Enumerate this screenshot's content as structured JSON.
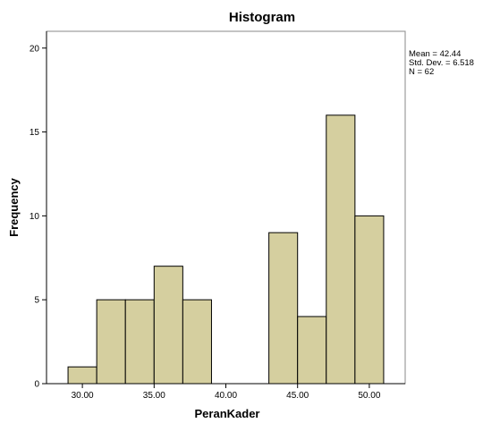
{
  "chart_data": {
    "type": "bar",
    "subtype": "histogram",
    "title": "Histogram",
    "xlabel": "PeranKader",
    "ylabel": "Frequency",
    "xlim": [
      27.5,
      52.5
    ],
    "ylim": [
      0,
      21
    ],
    "bin_width": 2,
    "bins": [
      {
        "start": 29,
        "end": 31,
        "frequency": 1
      },
      {
        "start": 31,
        "end": 33,
        "frequency": 5
      },
      {
        "start": 33,
        "end": 35,
        "frequency": 5
      },
      {
        "start": 35,
        "end": 37,
        "frequency": 7
      },
      {
        "start": 37,
        "end": 39,
        "frequency": 5
      },
      {
        "start": 39,
        "end": 41,
        "frequency": 0
      },
      {
        "start": 41,
        "end": 43,
        "frequency": 0
      },
      {
        "start": 43,
        "end": 45,
        "frequency": 9
      },
      {
        "start": 45,
        "end": 47,
        "frequency": 4
      },
      {
        "start": 47,
        "end": 49,
        "frequency": 16
      },
      {
        "start": 49,
        "end": 51,
        "frequency": 10
      }
    ],
    "x_ticks": [
      30,
      35,
      40,
      45,
      50
    ],
    "x_tick_labels": [
      "30.00",
      "35.00",
      "40.00",
      "45.00",
      "50.00"
    ],
    "y_ticks": [
      0,
      5,
      10,
      15,
      20
    ],
    "y_tick_labels": [
      "0",
      "5",
      "10",
      "15",
      "20"
    ],
    "stats": {
      "mean": "Mean = 42.44",
      "std_dev": "Std. Dev. = 6.518",
      "n": "N = 62"
    },
    "legend_position": "top-right",
    "grid": false,
    "colors": {
      "bar_fill": "#d5cf9f",
      "bar_stroke": "#000000",
      "plot_background": "#ffffff",
      "axis": "#000000"
    }
  }
}
